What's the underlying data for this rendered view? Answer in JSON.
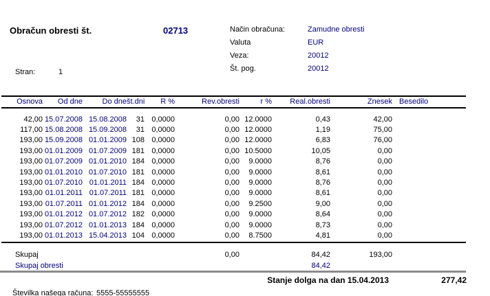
{
  "header": {
    "title": "Obračun obresti št.",
    "doc_number": "02713",
    "info": [
      {
        "label": "Način obračuna:",
        "value": "Zamudne obresti"
      },
      {
        "label": "Valuta",
        "value": "EUR"
      },
      {
        "label": "Veza:",
        "value": "20012"
      },
      {
        "label": "Št. pog.",
        "value": "20012"
      }
    ],
    "page_label": "Stran:",
    "page_number": "1"
  },
  "table": {
    "columns": [
      "Osnova",
      "Od dne",
      "Do dne",
      "št.dni",
      "R %",
      "Rev.obresti",
      "r %",
      "Real.obresti",
      "Znesek",
      "Besedilo"
    ],
    "rows": [
      [
        "42,00",
        "15.07.2008",
        "15.08.2008",
        "31",
        "0,0000",
        "0,00",
        "12.0000",
        "0,43",
        "42,00",
        ""
      ],
      [
        "117,00",
        "15.08.2008",
        "15.09.2008",
        "31",
        "0,0000",
        "0,00",
        "12.0000",
        "1,19",
        "75,00",
        ""
      ],
      [
        "193,00",
        "15.09.2008",
        "01.01.2009",
        "108",
        "0,0000",
        "0,00",
        "12.0000",
        "6,83",
        "76,00",
        ""
      ],
      [
        "193,00",
        "01.01.2009",
        "01.07.2009",
        "181",
        "0,0000",
        "0,00",
        "10.5000",
        "10,05",
        "0,00",
        ""
      ],
      [
        "193,00",
        "01.07.2009",
        "01.01.2010",
        "184",
        "0,0000",
        "0,00",
        "9.0000",
        "8,76",
        "0,00",
        ""
      ],
      [
        "193,00",
        "01.01.2010",
        "01.07.2010",
        "181",
        "0,0000",
        "0,00",
        "9.0000",
        "8,61",
        "0,00",
        ""
      ],
      [
        "193,00",
        "01.07.2010",
        "01.01.2011",
        "184",
        "0,0000",
        "0,00",
        "9.0000",
        "8,76",
        "0,00",
        ""
      ],
      [
        "193,00",
        "01.01.2011",
        "01.07.2011",
        "181",
        "0,0000",
        "0,00",
        "9.0000",
        "8,61",
        "0,00",
        ""
      ],
      [
        "193,00",
        "01.07.2011",
        "01.01.2012",
        "184",
        "0,0000",
        "0,00",
        "9.2500",
        "9,00",
        "0,00",
        ""
      ],
      [
        "193,00",
        "01.01.2012",
        "01.07.2012",
        "182",
        "0,0000",
        "0,00",
        "9.0000",
        "8,64",
        "0,00",
        ""
      ],
      [
        "193,00",
        "01.07.2012",
        "01.01.2013",
        "184",
        "0,0000",
        "0,00",
        "9.0000",
        "8,73",
        "0,00",
        ""
      ],
      [
        "193,00",
        "01.01.2013",
        "15.04.2013",
        "104",
        "0,0000",
        "0,00",
        "8.7500",
        "4,81",
        "0,00",
        ""
      ]
    ],
    "summary": {
      "total_label": "Skupaj",
      "total_rev_obresti": "0,00",
      "total_real_obresti": "84,42",
      "total_znesek": "193,00",
      "total_interest_label": "Skupaj obresti",
      "total_interest_value": "84,42"
    }
  },
  "footer": {
    "debt_label": "Stanje dolga na dan 15.04.2013",
    "debt_value": "277,42",
    "account_label": "Številka našega računa:",
    "account_value": "5555-55555555"
  },
  "colors": {
    "accent_navy": "#000080",
    "text": "#000000",
    "divider_gray": "#8a8a8a"
  }
}
